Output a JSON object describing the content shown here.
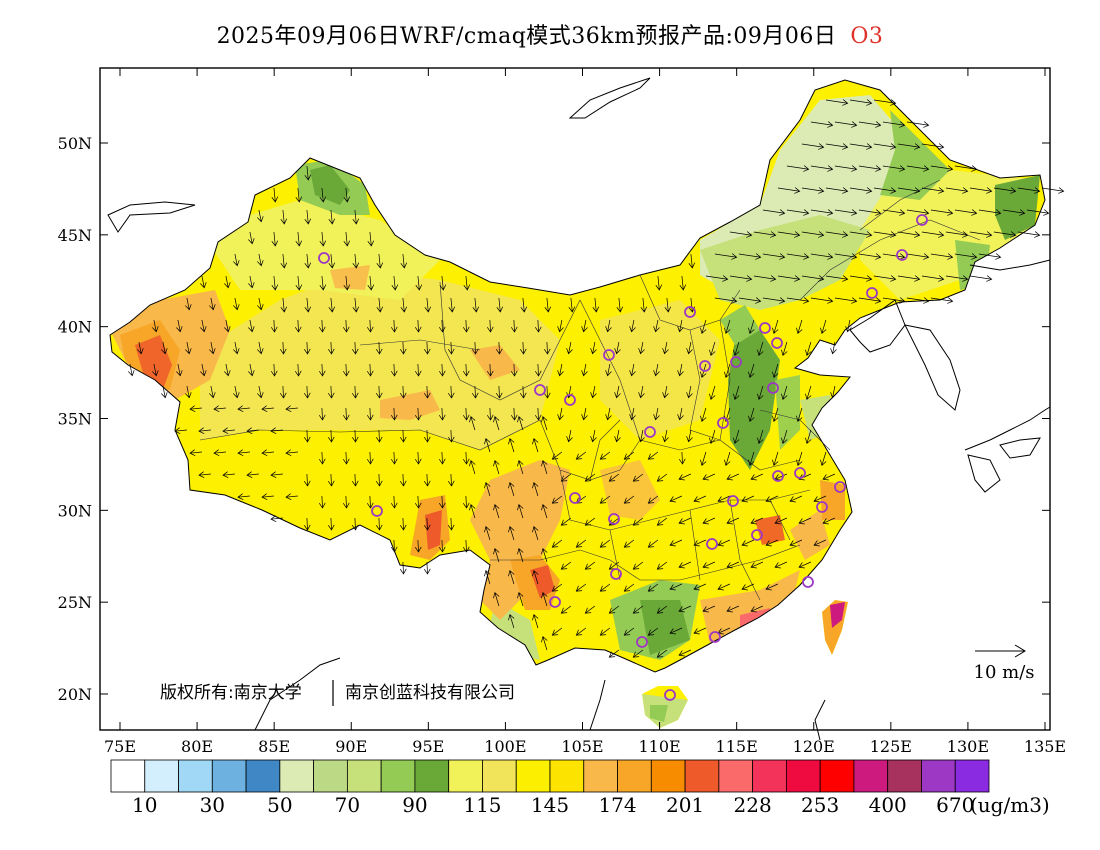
{
  "title": {
    "main": "2025年09月06日WRF/cmaq模式36km预报产品:09月06日",
    "pollutant": "O3"
  },
  "copyright": {
    "part1": "版权所有:南京大学",
    "part2": "南京创蓝科技有限公司"
  },
  "wind_scale": {
    "label": "10 m/s"
  },
  "axes": {
    "lat_ticks": [
      "50N",
      "45N",
      "40N",
      "35N",
      "30N",
      "25N",
      "20N"
    ],
    "lon_ticks": [
      "75E",
      "80E",
      "85E",
      "90E",
      "95E",
      "100E",
      "105E",
      "110E",
      "115E",
      "120E",
      "125E",
      "130E",
      "135E"
    ],
    "lon_range": [
      73,
      135
    ],
    "lat_range": [
      18,
      54
    ]
  },
  "colorbar": {
    "colors": [
      "#ffffff",
      "#d3eefc",
      "#a0d8f5",
      "#6cb1df",
      "#3f88c5",
      "#dcebb4",
      "#bcd985",
      "#c6e07a",
      "#94cb55",
      "#6aa838",
      "#f1f25a",
      "#f2e45a",
      "#fdef00",
      "#fde300",
      "#f9b94a",
      "#f7a628",
      "#f78c00",
      "#ee5a2a",
      "#fa6a6a",
      "#f4335a",
      "#ef0a40",
      "#ff0000",
      "#cc1a7e",
      "#a8325e",
      "#9d38c4",
      "#8a2be2"
    ],
    "labels": [
      "10",
      "30",
      "50",
      "70",
      "90",
      "115",
      "145",
      "174",
      "201",
      "228",
      "253",
      "400",
      "670"
    ],
    "unit": "(ug/m3)"
  },
  "palette": {
    "background": "#fdf200",
    "yellow_light": "#f2e45a",
    "yellow_pale": "#f1f25a",
    "green_light": "#dcebb4",
    "green_mid": "#c6e07a",
    "green_dark": "#6aa838",
    "green_med": "#94cb55",
    "orange_light": "#f9b94a",
    "orange": "#f7a628",
    "orange_dark": "#ee5a2a",
    "red": "#ef0a40",
    "magenta": "#cc1a7e",
    "station_marker": "#9d38c4"
  }
}
